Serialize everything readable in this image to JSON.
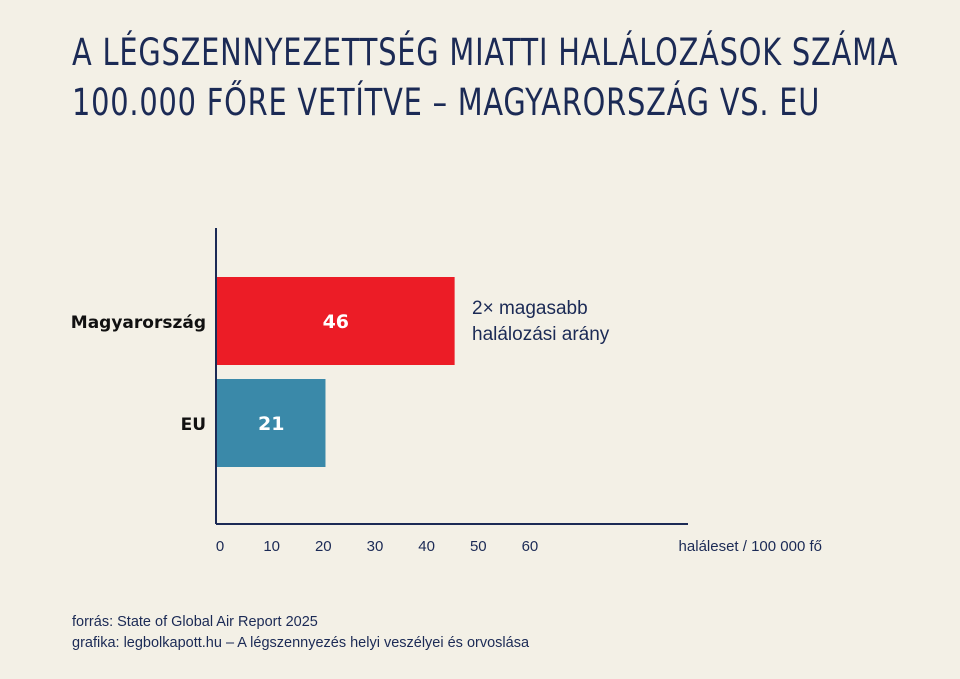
{
  "title_lines": [
    "A légszennyezettség miatti halálozások száma",
    "100.000 főre vetítve – Magyarország vs. EU"
  ],
  "chart_data": {
    "type": "bar",
    "orientation": "horizontal",
    "categories": [
      "Magyarország",
      "EU"
    ],
    "values": [
      46,
      21
    ],
    "value_labels": [
      "46",
      "21"
    ],
    "bar_colors": [
      "#ec1c26",
      "#3a89a9"
    ],
    "xlabel": "haláleset / 100 000 fő",
    "xticks": [
      0,
      10,
      20,
      30,
      40,
      50,
      60
    ],
    "xlim": [
      0,
      90
    ],
    "grid": false,
    "annotation": {
      "target": "Magyarország",
      "lines": [
        "2× magasabb",
        "halálozási arány"
      ]
    }
  },
  "footer": {
    "source": "forrás: State of Global Air Report 2025",
    "credit": "grafika: legbolkapott.hu – A légszennyezés helyi veszélyei és orvoslása"
  },
  "colors": {
    "background": "#f3f0e6",
    "text": "#1b2a55",
    "axis": "#1b2a55"
  }
}
